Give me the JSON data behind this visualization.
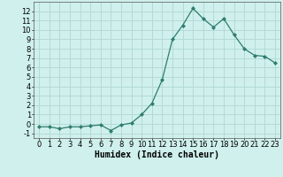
{
  "x": [
    0,
    1,
    2,
    3,
    4,
    5,
    6,
    7,
    8,
    9,
    10,
    11,
    12,
    13,
    14,
    15,
    16,
    17,
    18,
    19,
    20,
    21,
    22,
    23
  ],
  "y": [
    -0.3,
    -0.3,
    -0.5,
    -0.3,
    -0.3,
    -0.2,
    -0.1,
    -0.7,
    -0.1,
    0.1,
    1.0,
    2.2,
    4.7,
    9.0,
    10.5,
    12.3,
    11.2,
    10.3,
    11.2,
    9.5,
    8.0,
    7.3,
    7.2,
    6.5
  ],
  "xlabel": "Humidex (Indice chaleur)",
  "line_color": "#2e7d6e",
  "bg_color": "#cff0ec",
  "grid_major_color": "#b0d8d4",
  "grid_minor_color": "#c8ecea",
  "xlim": [
    -0.5,
    23.5
  ],
  "ylim": [
    -1.5,
    13.0
  ],
  "yticks": [
    -1,
    0,
    1,
    2,
    3,
    4,
    5,
    6,
    7,
    8,
    9,
    10,
    11,
    12
  ],
  "xticks": [
    0,
    1,
    2,
    3,
    4,
    5,
    6,
    7,
    8,
    9,
    10,
    11,
    12,
    13,
    14,
    15,
    16,
    17,
    18,
    19,
    20,
    21,
    22,
    23
  ],
  "tick_fontsize": 6.0,
  "xlabel_fontsize": 7.0
}
